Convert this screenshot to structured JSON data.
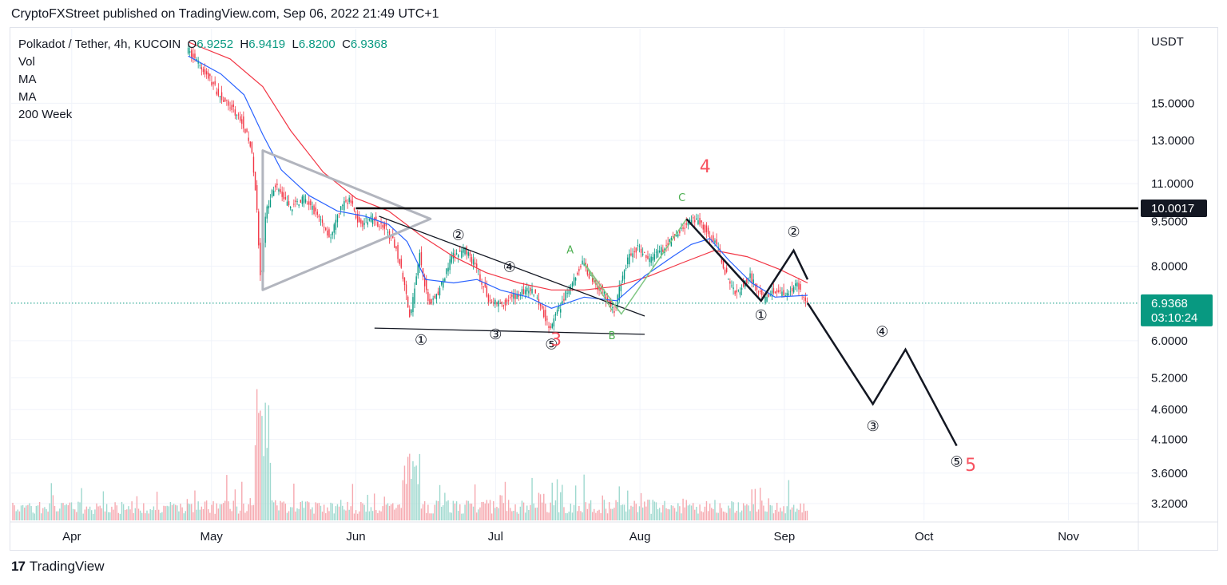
{
  "header": {
    "publisher_line": "CryptoFXStreet published on TradingView.com, Sep 06, 2022 21:49 UTC+1"
  },
  "legend": {
    "symbol": "Polkadot / Tether, 4h, KUCOIN",
    "open_label": "O",
    "open": "6.9252",
    "high_label": "H",
    "high": "6.9419",
    "low_label": "L",
    "low": "6.8200",
    "close_label": "C",
    "close": "6.9368",
    "studies": [
      "Vol",
      "MA",
      "MA",
      "200 Week"
    ]
  },
  "footer": {
    "logo_mark": "17",
    "logo_text": "TradingView"
  },
  "colors": {
    "up": "#089981",
    "down": "#f23645",
    "ma_fast": "#2962ff",
    "ma_slow": "#f23645",
    "wave_count": "#131722",
    "wave_red": "#f7525f",
    "abc_green": "#4caf50",
    "triangle": "#b2b5be"
  },
  "chart_data": {
    "type": "candlestick",
    "title": "Polkadot / Tether, 4h, KUCOIN",
    "y_axis": {
      "currency": "USDT",
      "scale": "log",
      "range": [
        3.0,
        20.0
      ],
      "ticks": [
        "15.0000",
        "13.0000",
        "11.0000",
        "9.5000",
        "8.0000",
        "6.0000",
        "5.2000",
        "4.6000",
        "4.1000",
        "3.6000",
        "3.2000"
      ]
    },
    "x_axis": {
      "labels": [
        "Apr",
        "May",
        "Jun",
        "Jul",
        "Aug",
        "Sep",
        "Oct",
        "Nov"
      ]
    },
    "price_path": [
      [
        "2022-04-26",
        18.5
      ],
      [
        "2022-05-01",
        16.5
      ],
      [
        "2022-05-03",
        15.5
      ],
      [
        "2022-05-06",
        14.6
      ],
      [
        "2022-05-08",
        14.0
      ],
      [
        "2022-05-10",
        12.5
      ],
      [
        "2022-05-11",
        10.3
      ],
      [
        "2022-05-12",
        7.3
      ],
      [
        "2022-05-13",
        9.8
      ],
      [
        "2022-05-15",
        11.0
      ],
      [
        "2022-05-18",
        10.0
      ],
      [
        "2022-05-21",
        10.4
      ],
      [
        "2022-05-24",
        9.8
      ],
      [
        "2022-05-27",
        8.9
      ],
      [
        "2022-05-29",
        10.0
      ],
      [
        "2022-05-31",
        10.4
      ],
      [
        "2022-06-02",
        9.4
      ],
      [
        "2022-06-05",
        9.6
      ],
      [
        "2022-06-08",
        9.2
      ],
      [
        "2022-06-10",
        8.6
      ],
      [
        "2022-06-12",
        7.3
      ],
      [
        "2022-06-13",
        6.5
      ],
      [
        "2022-06-15",
        8.4
      ],
      [
        "2022-06-17",
        6.9
      ],
      [
        "2022-06-19",
        7.2
      ],
      [
        "2022-06-22",
        8.3
      ],
      [
        "2022-06-25",
        8.5
      ],
      [
        "2022-06-27",
        8.0
      ],
      [
        "2022-06-30",
        7.0
      ],
      [
        "2022-07-03",
        6.9
      ],
      [
        "2022-07-05",
        7.1
      ],
      [
        "2022-07-08",
        7.3
      ],
      [
        "2022-07-10",
        7.2
      ],
      [
        "2022-07-13",
        6.3
      ],
      [
        "2022-07-15",
        6.8
      ],
      [
        "2022-07-18",
        7.6
      ],
      [
        "2022-07-20",
        8.1
      ],
      [
        "2022-07-22",
        7.6
      ],
      [
        "2022-07-24",
        7.3
      ],
      [
        "2022-07-27",
        6.7
      ],
      [
        "2022-07-28",
        7.4
      ],
      [
        "2022-07-30",
        8.3
      ],
      [
        "2022-08-01",
        8.6
      ],
      [
        "2022-08-03",
        8.2
      ],
      [
        "2022-08-06",
        8.5
      ],
      [
        "2022-08-09",
        9.0
      ],
      [
        "2022-08-12",
        9.5
      ],
      [
        "2022-08-14",
        9.5
      ],
      [
        "2022-08-16",
        9.1
      ],
      [
        "2022-08-18",
        8.6
      ],
      [
        "2022-08-20",
        7.7
      ],
      [
        "2022-08-22",
        7.2
      ],
      [
        "2022-08-25",
        7.7
      ],
      [
        "2022-08-28",
        7.0
      ],
      [
        "2022-08-30",
        7.3
      ],
      [
        "2022-09-02",
        7.2
      ],
      [
        "2022-09-04",
        7.5
      ],
      [
        "2022-09-06",
        6.94
      ]
    ],
    "ma_fast": [
      [
        "2022-04-26",
        18.0
      ],
      [
        "2022-05-03",
        16.8
      ],
      [
        "2022-05-08",
        15.5
      ],
      [
        "2022-05-12",
        13.3
      ],
      [
        "2022-05-16",
        11.6
      ],
      [
        "2022-05-22",
        10.5
      ],
      [
        "2022-05-28",
        9.9
      ],
      [
        "2022-06-03",
        9.7
      ],
      [
        "2022-06-08",
        9.4
      ],
      [
        "2022-06-12",
        8.8
      ],
      [
        "2022-06-16",
        7.6
      ],
      [
        "2022-06-22",
        7.5
      ],
      [
        "2022-06-27",
        7.6
      ],
      [
        "2022-07-02",
        7.3
      ],
      [
        "2022-07-08",
        7.1
      ],
      [
        "2022-07-13",
        6.8
      ],
      [
        "2022-07-20",
        7.1
      ],
      [
        "2022-07-27",
        7.0
      ],
      [
        "2022-08-02",
        7.7
      ],
      [
        "2022-08-08",
        8.3
      ],
      [
        "2022-08-12",
        8.7
      ],
      [
        "2022-08-16",
        8.9
      ],
      [
        "2022-08-20",
        8.2
      ],
      [
        "2022-08-25",
        7.5
      ],
      [
        "2022-08-30",
        7.1
      ],
      [
        "2022-09-06",
        7.15
      ]
    ],
    "ma_slow": [
      [
        "2022-04-26",
        19.0
      ],
      [
        "2022-05-05",
        17.8
      ],
      [
        "2022-05-12",
        16.0
      ],
      [
        "2022-05-18",
        13.5
      ],
      [
        "2022-05-25",
        11.5
      ],
      [
        "2022-06-01",
        10.4
      ],
      [
        "2022-06-08",
        9.9
      ],
      [
        "2022-06-15",
        9.0
      ],
      [
        "2022-06-22",
        8.3
      ],
      [
        "2022-06-29",
        7.8
      ],
      [
        "2022-07-06",
        7.5
      ],
      [
        "2022-07-13",
        7.3
      ],
      [
        "2022-07-20",
        7.3
      ],
      [
        "2022-07-27",
        7.4
      ],
      [
        "2022-08-03",
        7.7
      ],
      [
        "2022-08-10",
        8.1
      ],
      [
        "2022-08-17",
        8.5
      ],
      [
        "2022-08-24",
        8.3
      ],
      [
        "2022-08-31",
        7.9
      ],
      [
        "2022-09-06",
        7.5
      ]
    ],
    "projection_path": [
      [
        "2022-09-06",
        6.94
      ],
      [
        "2022-09-20",
        4.7
      ],
      [
        "2022-09-27",
        5.8
      ],
      [
        "2022-10-08",
        4.0
      ]
    ],
    "horizontal_level": {
      "value": 10.0017,
      "label": "10.0017",
      "from": "2022-06-01"
    },
    "current_price": {
      "value": 6.9368,
      "label": "6.9368",
      "countdown": "03:10:24"
    },
    "triangle": [
      [
        "2022-05-12",
        12.5
      ],
      [
        "2022-05-12",
        7.3
      ],
      [
        "2022-06-17",
        9.6
      ]
    ],
    "upper_trendline": [
      [
        "2022-06-06",
        9.7
      ],
      [
        "2022-08-02",
        6.6
      ]
    ],
    "lower_trendline": [
      [
        "2022-06-05",
        6.3
      ],
      [
        "2022-08-02",
        6.15
      ]
    ],
    "abc_path": [
      [
        "2022-07-26",
        6.75
      ],
      [
        "2022-07-20",
        8.1
      ],
      [
        "2022-07-28",
        6.65
      ],
      [
        "2022-08-11",
        9.6
      ]
    ],
    "impulse_path": [
      [
        "2022-08-11",
        9.6
      ],
      [
        "2022-08-27",
        7.0
      ],
      [
        "2022-09-03",
        8.5
      ],
      [
        "2022-09-06",
        7.6
      ]
    ],
    "wave_labels": [
      {
        "text": "①",
        "date": "2022-06-15",
        "price": 6.0,
        "style": "circle"
      },
      {
        "text": "②",
        "date": "2022-06-23",
        "price": 9.0,
        "style": "circle"
      },
      {
        "text": "③",
        "date": "2022-07-01",
        "price": 6.13,
        "style": "circle"
      },
      {
        "text": "④",
        "date": "2022-07-04",
        "price": 7.95,
        "style": "circle"
      },
      {
        "text": "⑤",
        "date": "2022-07-13",
        "price": 5.9,
        "style": "circle"
      },
      {
        "text": "3",
        "date": "2022-07-14",
        "price": 6.0,
        "style": "red"
      },
      {
        "text": "A",
        "date": "2022-07-17",
        "price": 8.5,
        "style": "green"
      },
      {
        "text": "B",
        "date": "2022-07-26",
        "price": 6.1,
        "style": "green"
      },
      {
        "text": "C",
        "date": "2022-08-10",
        "price": 10.4,
        "style": "green"
      },
      {
        "text": "4",
        "date": "2022-08-15",
        "price": 11.7,
        "style": "red"
      },
      {
        "text": "①",
        "date": "2022-08-27",
        "price": 6.6,
        "style": "circle"
      },
      {
        "text": "②",
        "date": "2022-09-03",
        "price": 9.1,
        "style": "circle"
      },
      {
        "text": "③",
        "date": "2022-09-20",
        "price": 4.3,
        "style": "circle"
      },
      {
        "text": "④",
        "date": "2022-09-22",
        "price": 6.2,
        "style": "circle"
      },
      {
        "text": "⑤",
        "date": "2022-10-08",
        "price": 3.75,
        "style": "circle"
      },
      {
        "text": "5",
        "date": "2022-10-11",
        "price": 3.7,
        "style": "red"
      }
    ]
  }
}
